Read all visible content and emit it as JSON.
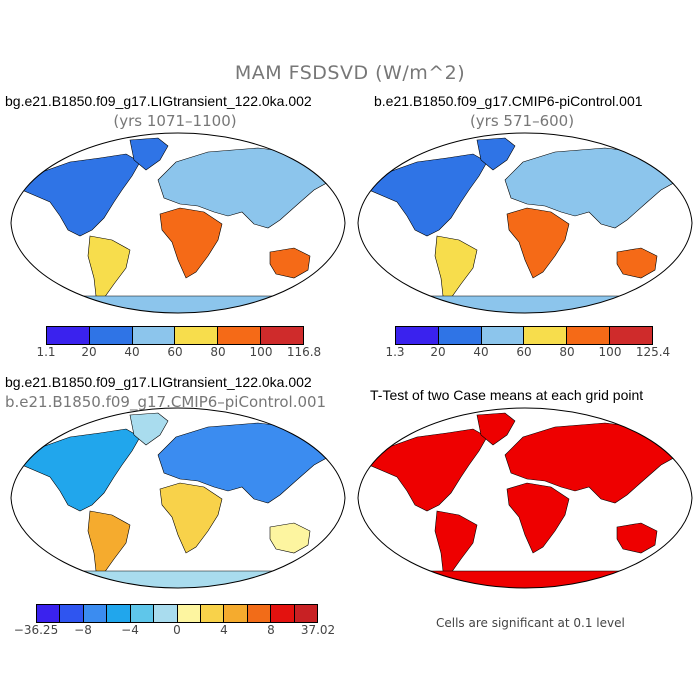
{
  "main_title": "MAM FSDSVD (W/m^2)",
  "panels": [
    {
      "id": "case1",
      "title": "bg.e21.B1850.f09_g17.LIGtransient_122.0ka.002",
      "subtitle": "(yrs 1071–1100)",
      "colorbar": {
        "colors": [
          "#3a22ee",
          "#2f74e6",
          "#8cc5ec",
          "#f7dd4c",
          "#f56a17",
          "#cf2b2b"
        ],
        "tick_labels": [
          "1.1",
          "20",
          "40",
          "60",
          "80",
          "100",
          "116.8"
        ]
      }
    },
    {
      "id": "case2",
      "title": "b.e21.B1850.f09_g17.CMIP6-piControl.001",
      "subtitle": "(yrs 571–600)",
      "colorbar": {
        "colors": [
          "#3a22ee",
          "#2f74e6",
          "#8cc5ec",
          "#f7dd4c",
          "#f56a17",
          "#cf2b2b"
        ],
        "tick_labels": [
          "1.3",
          "20",
          "40",
          "60",
          "80",
          "100",
          "125.4"
        ]
      }
    },
    {
      "id": "difference",
      "title": "bg.e21.B1850.f09_g17.LIGtransient_122.0ka.002",
      "subtitle": "b.e21.B1850.f09_g17.CMIP6–piControl.001",
      "colorbar": {
        "colors": [
          "#3a22ee",
          "#2f55f0",
          "#3b8cf0",
          "#21a6ec",
          "#5fc6ea",
          "#a9dcee",
          "#fdf5a0",
          "#f8d24a",
          "#f5ab2e",
          "#f26c18",
          "#e3120f",
          "#c82124"
        ],
        "tick_labels": [
          "−36.25",
          "−8",
          "−4",
          "0",
          "4",
          "8",
          "37.02"
        ]
      }
    },
    {
      "id": "ttest",
      "title": "T-Test of two Case means at each grid point",
      "note": "Cells are significant at 0.1 level",
      "significant_color": "#ee0000"
    }
  ]
}
